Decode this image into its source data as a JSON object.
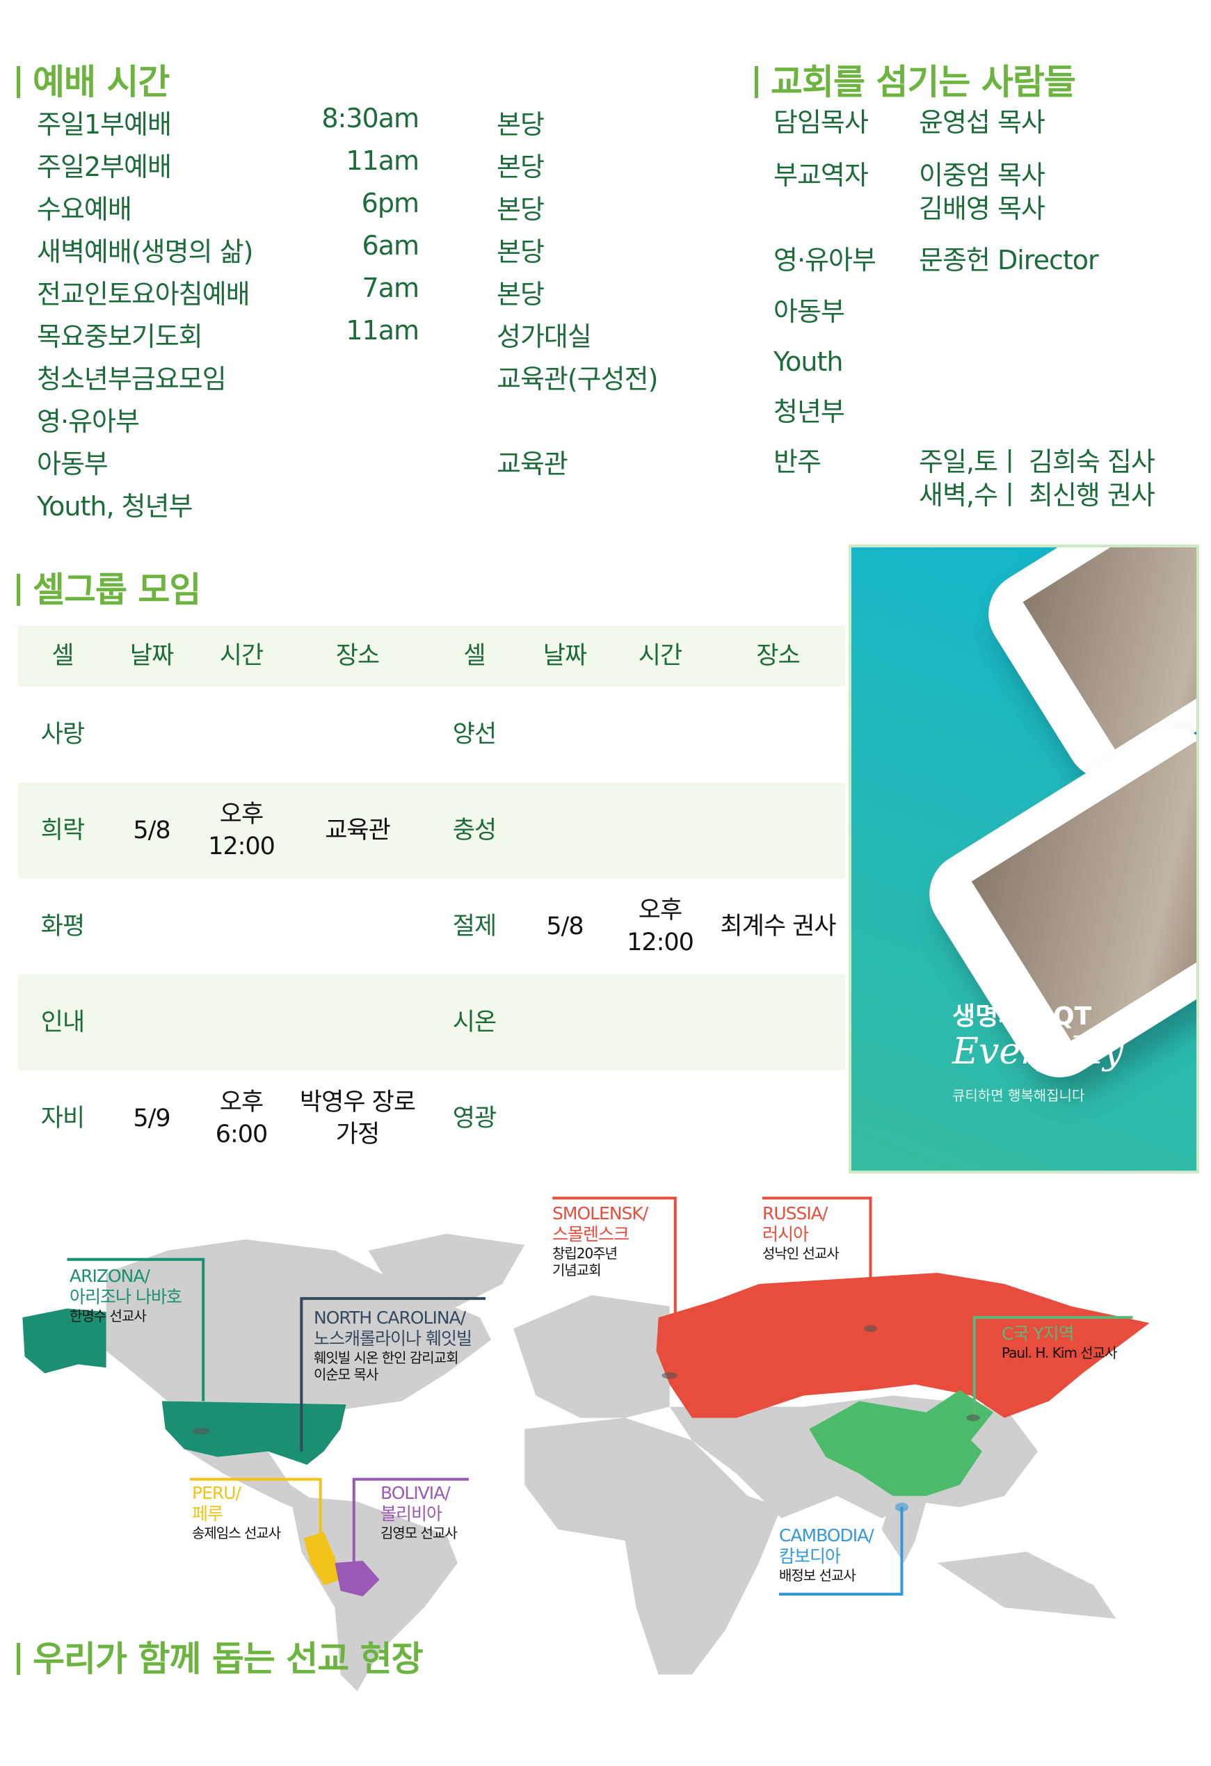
{
  "worship": {
    "title": "예배 시간",
    "rows": [
      {
        "name": "주일1부예배",
        "time": "8:30am",
        "place": "본당"
      },
      {
        "name": "주일2부예배",
        "time": "11am",
        "place": "본당"
      },
      {
        "name": "수요예배",
        "time": "6pm",
        "place": "본당"
      },
      {
        "name": "새벽예배(생명의 삶)",
        "time": "6am",
        "place": "본당"
      },
      {
        "name": "전교인토요아침예배",
        "time": "7am",
        "place": "본당"
      },
      {
        "name": "목요중보기도회",
        "time": "11am",
        "place": "성가대실"
      },
      {
        "name": "청소년부금요모임",
        "time": "",
        "place": "교육관(구성전)"
      },
      {
        "name": "영·유아부",
        "time": "",
        "place": ""
      },
      {
        "name": "아동부",
        "time": "",
        "place": "교육관"
      },
      {
        "name": "Youth, 청년부",
        "time": "",
        "place": ""
      }
    ]
  },
  "staff": {
    "title": "교회를 섬기는 사람들",
    "rows": [
      {
        "role": "담임목사",
        "names": "윤영섭 목사"
      },
      {
        "role": "부교역자",
        "names": "이중엄 목사\n김배영 목사"
      },
      {
        "role": "영·유아부",
        "names": "문종헌 Director"
      },
      {
        "role": "아동부",
        "names": ""
      },
      {
        "role": "Youth",
        "names": ""
      },
      {
        "role": "청년부",
        "names": ""
      },
      {
        "role": "반주",
        "names": "주일,토ㅣ 김희숙 집사\n새벽,수ㅣ 최신행 권사"
      }
    ]
  },
  "cell_groups": {
    "title": "셀그룹 모임",
    "headers": [
      "셀",
      "날짜",
      "시간",
      "장소",
      "셀",
      "날짜",
      "시간",
      "장소"
    ],
    "rows": [
      [
        "사랑",
        "",
        "",
        "",
        "양선",
        "",
        "",
        ""
      ],
      [
        "희락",
        "5/8",
        "오후\n12:00",
        "교육관",
        "충성",
        "",
        "",
        ""
      ],
      [
        "화평",
        "",
        "",
        "",
        "절제",
        "5/8",
        "오후\n12:00",
        "최계수 권사"
      ],
      [
        "인내",
        "",
        "",
        "",
        "시온",
        "",
        "",
        ""
      ],
      [
        "자비",
        "5/9",
        "오후\n6:00",
        "박영우 장로\n가정",
        "영광",
        "",
        "",
        ""
      ]
    ]
  },
  "ad": {
    "title": "생명의삶 QT",
    "script": "Everyday",
    "subtitle": "큐티하면 행복해집니다"
  },
  "missions": {
    "title": "우리가 함께 돕는 선교 현장",
    "labels": [
      {
        "en": "ARIZONA/",
        "ko": "아리조나 나바호",
        "people": "한명수 선교사",
        "color": "#1a8f72"
      },
      {
        "en": "NORTH CAROLINA/",
        "ko": "노스캐롤라이나 훼잇빌",
        "people": "훼잇빌 시온 한인 감리교회\n이순모 목사",
        "color": "#34495e"
      },
      {
        "en": "PERU/",
        "ko": "페루",
        "people": "송제임스 선교사",
        "color": "#f2c318"
      },
      {
        "en": "BOLIVIA/",
        "ko": "볼리비아",
        "people": "김영모 선교사",
        "color": "#9b59b6"
      },
      {
        "en": "SMOLENSK/",
        "ko": "스몰렌스크",
        "people": "창립20주년\n기념교회",
        "color": "#e74c3c"
      },
      {
        "en": "RUSSIA/",
        "ko": "러시아",
        "people": "성낙인 선교사",
        "color": "#e74c3c"
      },
      {
        "en": "",
        "ko": "C국 Y지역",
        "people": "Paul. H. Kim 선교사",
        "color": "#5cb878"
      },
      {
        "en": "CAMBODIA/",
        "ko": "캄보디아",
        "people": "배정보 선교사",
        "color": "#3498db"
      }
    ]
  },
  "colors": {
    "heading": "#6db33f",
    "text": "#1d6b3a",
    "shade": "#f3f8ec"
  }
}
